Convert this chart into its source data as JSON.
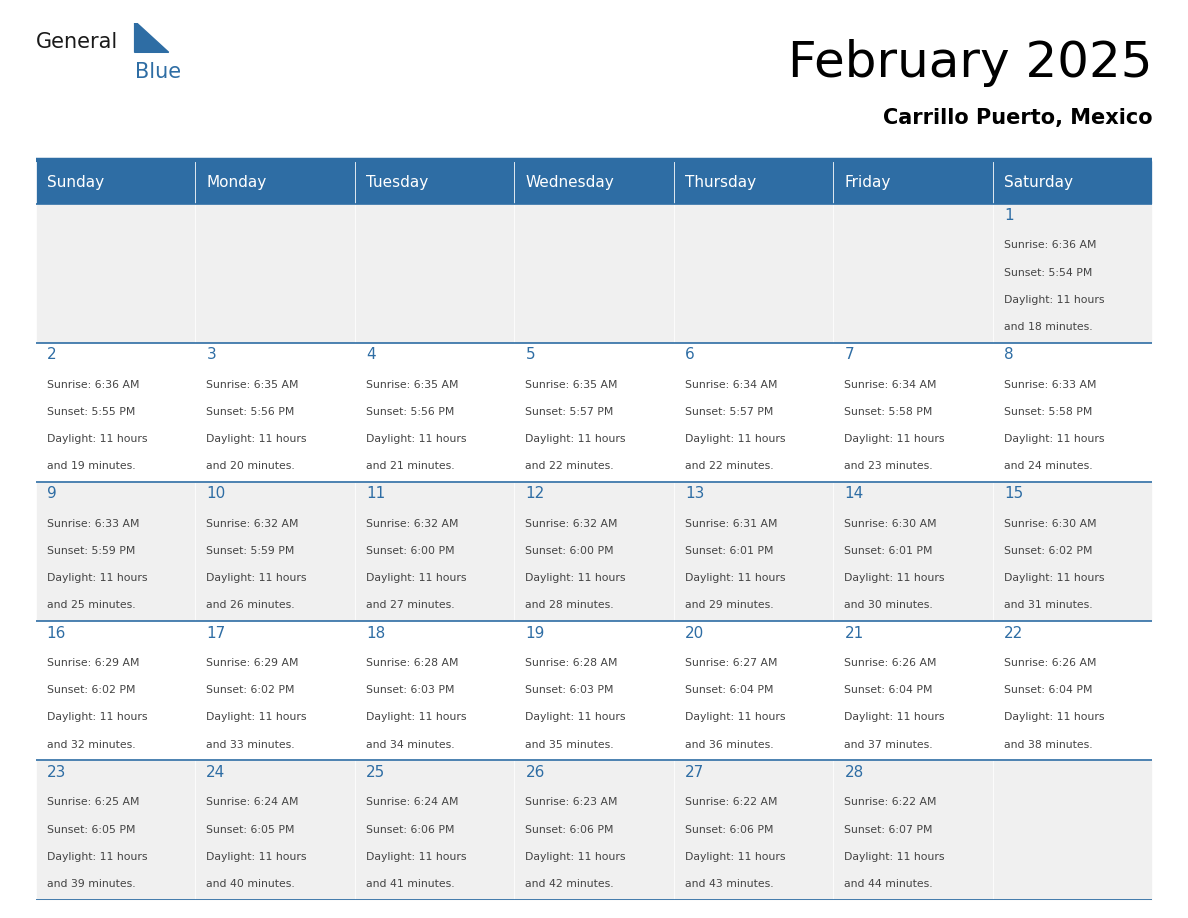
{
  "title": "February 2025",
  "subtitle": "Carrillo Puerto, Mexico",
  "header_bg": "#2E6DA4",
  "header_text_color": "#FFFFFF",
  "cell_bg_odd": "#F0F0F0",
  "cell_bg_even": "#FFFFFF",
  "cell_border_color": "#2E6DA4",
  "day_number_color": "#2E6DA4",
  "text_color": "#444444",
  "days_of_week": [
    "Sunday",
    "Monday",
    "Tuesday",
    "Wednesday",
    "Thursday",
    "Friday",
    "Saturday"
  ],
  "logo_general_color": "#1a1a1a",
  "logo_blue_color": "#2E6DA4",
  "calendar": [
    [
      null,
      null,
      null,
      null,
      null,
      null,
      {
        "day": 1,
        "sunrise": "6:36 AM",
        "sunset": "5:54 PM",
        "daylight": "11 hours and 18 minutes."
      }
    ],
    [
      {
        "day": 2,
        "sunrise": "6:36 AM",
        "sunset": "5:55 PM",
        "daylight": "11 hours and 19 minutes."
      },
      {
        "day": 3,
        "sunrise": "6:35 AM",
        "sunset": "5:56 PM",
        "daylight": "11 hours and 20 minutes."
      },
      {
        "day": 4,
        "sunrise": "6:35 AM",
        "sunset": "5:56 PM",
        "daylight": "11 hours and 21 minutes."
      },
      {
        "day": 5,
        "sunrise": "6:35 AM",
        "sunset": "5:57 PM",
        "daylight": "11 hours and 22 minutes."
      },
      {
        "day": 6,
        "sunrise": "6:34 AM",
        "sunset": "5:57 PM",
        "daylight": "11 hours and 22 minutes."
      },
      {
        "day": 7,
        "sunrise": "6:34 AM",
        "sunset": "5:58 PM",
        "daylight": "11 hours and 23 minutes."
      },
      {
        "day": 8,
        "sunrise": "6:33 AM",
        "sunset": "5:58 PM",
        "daylight": "11 hours and 24 minutes."
      }
    ],
    [
      {
        "day": 9,
        "sunrise": "6:33 AM",
        "sunset": "5:59 PM",
        "daylight": "11 hours and 25 minutes."
      },
      {
        "day": 10,
        "sunrise": "6:32 AM",
        "sunset": "5:59 PM",
        "daylight": "11 hours and 26 minutes."
      },
      {
        "day": 11,
        "sunrise": "6:32 AM",
        "sunset": "6:00 PM",
        "daylight": "11 hours and 27 minutes."
      },
      {
        "day": 12,
        "sunrise": "6:32 AM",
        "sunset": "6:00 PM",
        "daylight": "11 hours and 28 minutes."
      },
      {
        "day": 13,
        "sunrise": "6:31 AM",
        "sunset": "6:01 PM",
        "daylight": "11 hours and 29 minutes."
      },
      {
        "day": 14,
        "sunrise": "6:30 AM",
        "sunset": "6:01 PM",
        "daylight": "11 hours and 30 minutes."
      },
      {
        "day": 15,
        "sunrise": "6:30 AM",
        "sunset": "6:02 PM",
        "daylight": "11 hours and 31 minutes."
      }
    ],
    [
      {
        "day": 16,
        "sunrise": "6:29 AM",
        "sunset": "6:02 PM",
        "daylight": "11 hours and 32 minutes."
      },
      {
        "day": 17,
        "sunrise": "6:29 AM",
        "sunset": "6:02 PM",
        "daylight": "11 hours and 33 minutes."
      },
      {
        "day": 18,
        "sunrise": "6:28 AM",
        "sunset": "6:03 PM",
        "daylight": "11 hours and 34 minutes."
      },
      {
        "day": 19,
        "sunrise": "6:28 AM",
        "sunset": "6:03 PM",
        "daylight": "11 hours and 35 minutes."
      },
      {
        "day": 20,
        "sunrise": "6:27 AM",
        "sunset": "6:04 PM",
        "daylight": "11 hours and 36 minutes."
      },
      {
        "day": 21,
        "sunrise": "6:26 AM",
        "sunset": "6:04 PM",
        "daylight": "11 hours and 37 minutes."
      },
      {
        "day": 22,
        "sunrise": "6:26 AM",
        "sunset": "6:04 PM",
        "daylight": "11 hours and 38 minutes."
      }
    ],
    [
      {
        "day": 23,
        "sunrise": "6:25 AM",
        "sunset": "6:05 PM",
        "daylight": "11 hours and 39 minutes."
      },
      {
        "day": 24,
        "sunrise": "6:24 AM",
        "sunset": "6:05 PM",
        "daylight": "11 hours and 40 minutes."
      },
      {
        "day": 25,
        "sunrise": "6:24 AM",
        "sunset": "6:06 PM",
        "daylight": "11 hours and 41 minutes."
      },
      {
        "day": 26,
        "sunrise": "6:23 AM",
        "sunset": "6:06 PM",
        "daylight": "11 hours and 42 minutes."
      },
      {
        "day": 27,
        "sunrise": "6:22 AM",
        "sunset": "6:06 PM",
        "daylight": "11 hours and 43 minutes."
      },
      {
        "day": 28,
        "sunrise": "6:22 AM",
        "sunset": "6:07 PM",
        "daylight": "11 hours and 44 minutes."
      },
      null
    ]
  ]
}
